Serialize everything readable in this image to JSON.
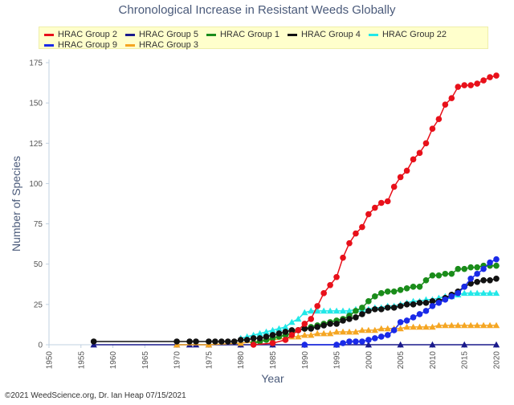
{
  "chart_data": {
    "type": "line",
    "title": "Chronological Increase in Resistant Weeds Globally",
    "xlabel": "Year",
    "ylabel": "Number of Species",
    "xlim": [
      1950,
      2020
    ],
    "ylim": [
      0,
      175
    ],
    "xticks": [
      1950,
      1955,
      1960,
      1965,
      1970,
      1975,
      1980,
      1985,
      1990,
      1995,
      2000,
      2005,
      2010,
      2015,
      2020
    ],
    "yticks": [
      0,
      25,
      50,
      75,
      100,
      125,
      150,
      175
    ],
    "grid": false,
    "legend_position": "top",
    "footer": "©2021 WeedScience.org, Dr. Ian Heap 07/15/2021",
    "series": [
      {
        "name": "HRAC Group 2",
        "color": "#e8101a",
        "marker": "circle",
        "x": [
          1982,
          1985,
          1987,
          1988,
          1989,
          1990,
          1991,
          1992,
          1993,
          1994,
          1995,
          1996,
          1997,
          1998,
          1999,
          2000,
          2001,
          2002,
          2003,
          2004,
          2005,
          2006,
          2007,
          2008,
          2009,
          2010,
          2011,
          2012,
          2013,
          2014,
          2015,
          2016,
          2017,
          2018,
          2019,
          2020
        ],
        "y": [
          0,
          1,
          3,
          6,
          9,
          13,
          16,
          24,
          32,
          37,
          42,
          54,
          63,
          69,
          73,
          81,
          85,
          88,
          89,
          98,
          104,
          108,
          115,
          119,
          125,
          134,
          140,
          149,
          153,
          160,
          161,
          161,
          162,
          164,
          166,
          167
        ]
      },
      {
        "name": "HRAC Group 5",
        "color": "#1a1a8c",
        "marker": "triangle",
        "x": [
          1957,
          1970,
          1972,
          1973,
          1975,
          1980,
          1985,
          1990,
          1995,
          2000,
          2005,
          2010,
          2015,
          2020
        ],
        "y": [
          0,
          0,
          0,
          0,
          0,
          0,
          0,
          0,
          0,
          0,
          0,
          0,
          0,
          0
        ]
      },
      {
        "name": "HRAC Group 1",
        "color": "#1a8c1a",
        "marker": "circle",
        "x": [
          1982,
          1983,
          1984,
          1985,
          1986,
          1987,
          1988,
          1989,
          1990,
          1991,
          1992,
          1993,
          1994,
          1995,
          1996,
          1997,
          1998,
          1999,
          2000,
          2001,
          2002,
          2003,
          2004,
          2005,
          2006,
          2007,
          2008,
          2009,
          2010,
          2011,
          2012,
          2013,
          2014,
          2015,
          2016,
          2017,
          2018,
          2019,
          2020
        ],
        "y": [
          1,
          2,
          3,
          4,
          5,
          6,
          7,
          9,
          10,
          11,
          12,
          13,
          14,
          15,
          16,
          18,
          21,
          23,
          27,
          30,
          32,
          33,
          33,
          34,
          35,
          36,
          36,
          40,
          43,
          43,
          44,
          44,
          47,
          47,
          48,
          48,
          49,
          49,
          49
        ]
      },
      {
        "name": "HRAC Group 4",
        "color": "#111111",
        "marker": "circle",
        "x": [
          1957,
          1970,
          1972,
          1973,
          1975,
          1976,
          1977,
          1978,
          1979,
          1980,
          1981,
          1982,
          1983,
          1984,
          1985,
          1986,
          1987,
          1988,
          1989,
          1990,
          1991,
          1992,
          1993,
          1994,
          1995,
          1996,
          1997,
          1998,
          1999,
          2000,
          2001,
          2002,
          2003,
          2004,
          2005,
          2006,
          2007,
          2008,
          2009,
          2010,
          2011,
          2012,
          2013,
          2014,
          2015,
          2016,
          2017,
          2018,
          2019,
          2020
        ],
        "y": [
          2,
          2,
          2,
          2,
          2,
          2,
          2,
          2,
          2,
          3,
          3,
          4,
          4,
          5,
          6,
          7,
          8,
          9,
          9,
          10,
          10,
          11,
          12,
          13,
          13,
          15,
          16,
          17,
          19,
          21,
          22,
          22,
          23,
          23,
          24,
          25,
          25,
          26,
          26,
          27,
          27,
          29,
          31,
          33,
          36,
          38,
          39,
          40,
          40,
          41
        ]
      },
      {
        "name": "HRAC Group 22",
        "color": "#22e8e8",
        "marker": "triangle",
        "x": [
          1980,
          1981,
          1982,
          1983,
          1984,
          1985,
          1986,
          1987,
          1988,
          1989,
          1990,
          1991,
          1992,
          1993,
          1994,
          1995,
          1996,
          1997,
          1998,
          1999,
          2000,
          2001,
          2002,
          2003,
          2004,
          2005,
          2006,
          2007,
          2008,
          2009,
          2010,
          2011,
          2012,
          2013,
          2014,
          2015,
          2016,
          2017,
          2018,
          2019,
          2020
        ],
        "y": [
          4,
          5,
          6,
          7,
          8,
          9,
          10,
          11,
          14,
          16,
          20,
          21,
          21,
          21,
          21,
          21,
          21,
          21,
          22,
          22,
          22,
          23,
          23,
          24,
          24,
          25,
          26,
          27,
          27,
          28,
          28,
          29,
          30,
          30,
          31,
          32,
          32,
          32,
          32,
          32,
          32
        ]
      },
      {
        "name": "HRAC Group 9",
        "color": "#1a2ae8",
        "marker": "circle",
        "x": [
          1990,
          1995,
          1996,
          1997,
          1998,
          1999,
          2000,
          2001,
          2002,
          2003,
          2004,
          2005,
          2006,
          2007,
          2008,
          2009,
          2010,
          2011,
          2012,
          2013,
          2014,
          2015,
          2016,
          2017,
          2018,
          2019,
          2020
        ],
        "y": [
          0,
          0,
          1,
          2,
          2,
          2,
          3,
          4,
          5,
          6,
          9,
          14,
          15,
          17,
          19,
          21,
          24,
          26,
          28,
          30,
          32,
          36,
          41,
          44,
          47,
          51,
          53
        ]
      },
      {
        "name": "HRAC Group 3",
        "color": "#f5a623",
        "marker": "triangle",
        "x": [
          1970,
          1975,
          1980,
          1985,
          1987,
          1988,
          1989,
          1990,
          1991,
          1992,
          1993,
          1994,
          1995,
          1996,
          1997,
          1998,
          1999,
          2000,
          2001,
          2002,
          2003,
          2004,
          2005,
          2006,
          2007,
          2008,
          2009,
          2010,
          2011,
          2012,
          2013,
          2014,
          2015,
          2016,
          2017,
          2018,
          2019,
          2020
        ],
        "y": [
          0,
          0,
          1,
          3,
          4,
          5,
          5,
          6,
          6,
          7,
          7,
          7,
          8,
          8,
          8,
          8,
          9,
          9,
          9,
          10,
          10,
          10,
          10,
          11,
          11,
          11,
          11,
          11,
          12,
          12,
          12,
          12,
          12,
          12,
          12,
          12,
          12,
          12
        ]
      }
    ]
  }
}
